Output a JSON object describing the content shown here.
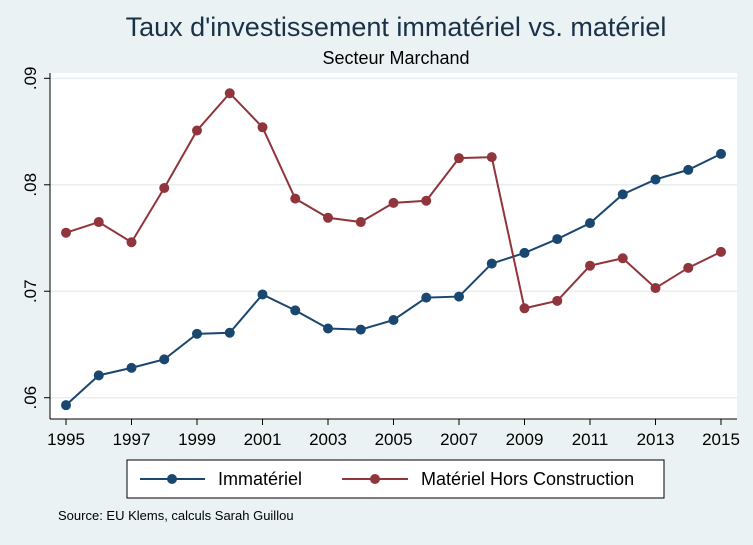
{
  "chart_data": {
    "type": "line",
    "title": "Taux d'investissement immatériel vs. matériel",
    "subtitle": "Secteur Marchand",
    "note": "Source: EU Klems, calculs Sarah Guillou",
    "xlabel": "",
    "ylabel": "",
    "x": [
      1995,
      1996,
      1997,
      1998,
      1999,
      2000,
      2001,
      2002,
      2003,
      2004,
      2005,
      2006,
      2007,
      2008,
      2009,
      2010,
      2011,
      2012,
      2013,
      2014,
      2015
    ],
    "xticks": [
      "1995",
      "1997",
      "1999",
      "2001",
      "2003",
      "2005",
      "2007",
      "2009",
      "2011",
      "2013",
      "2015"
    ],
    "yticks": [
      ".06",
      ".07",
      ".08",
      ".09"
    ],
    "ylim": [
      0.058,
      0.0905
    ],
    "grid": true,
    "legend_position": "bottom",
    "series": [
      {
        "name": "Immatériel",
        "color": "#1a476f",
        "values": [
          0.0593,
          0.0621,
          0.0628,
          0.0636,
          0.066,
          0.0661,
          0.0697,
          0.0682,
          0.0665,
          0.0664,
          0.0673,
          0.0694,
          0.0695,
          0.0726,
          0.0736,
          0.0749,
          0.0764,
          0.0791,
          0.0805,
          0.0814,
          0.0829
        ]
      },
      {
        "name": "Matériel Hors Construction",
        "color": "#90353b",
        "values": [
          0.0755,
          0.0765,
          0.0746,
          0.0797,
          0.0851,
          0.0886,
          0.0854,
          0.0787,
          0.0769,
          0.0765,
          0.0783,
          0.0785,
          0.0825,
          0.0826,
          0.0684,
          0.0691,
          0.0724,
          0.0731,
          0.0703,
          0.0722,
          0.0737
        ]
      }
    ]
  }
}
